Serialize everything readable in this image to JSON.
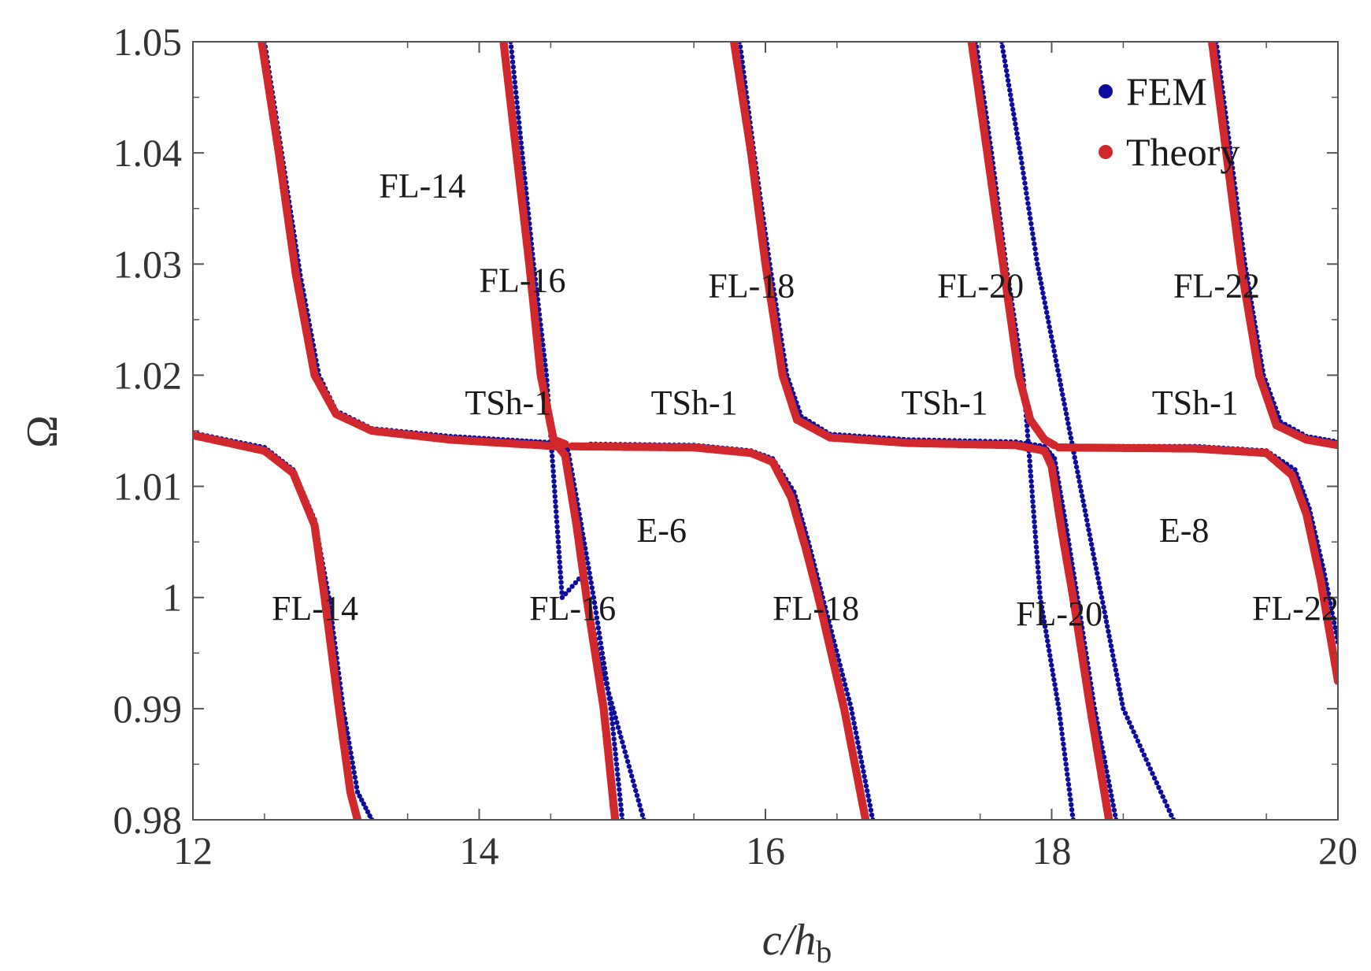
{
  "chart_data": {
    "type": "scatter",
    "xlabel_parts": {
      "main": "c/h",
      "sub": "b"
    },
    "ylabel": "Ω",
    "xlim": [
      12,
      20
    ],
    "ylim": [
      0.98,
      1.05
    ],
    "x_ticks": [
      "12",
      "14",
      "16",
      "18",
      "20"
    ],
    "y_ticks": [
      "0.98",
      "0.99",
      "1",
      "1.01",
      "1.02",
      "1.03",
      "1.04",
      "1.05"
    ],
    "grid": false,
    "legend_position": "top-right",
    "colors": {
      "FEM": "#0b0b9e",
      "Theory": "#d0282c",
      "axis": "#555555"
    },
    "series": [
      {
        "name": "FEM",
        "marker": "dots",
        "segments": [
          [
            [
              12.0,
              1.0148
            ],
            [
              12.5,
              1.0135
            ],
            [
              12.7,
              1.0115
            ],
            [
              12.85,
              1.007
            ],
            [
              12.95,
              1.0
            ],
            [
              13.05,
              0.99
            ],
            [
              13.15,
              0.9825
            ],
            [
              13.25,
              0.98
            ]
          ],
          [
            [
              12.5,
              1.05
            ],
            [
              12.62,
              1.04
            ],
            [
              12.75,
              1.029
            ],
            [
              12.88,
              1.02
            ],
            [
              13.0,
              1.0168
            ],
            [
              13.25,
              1.0152
            ],
            [
              13.8,
              1.0145
            ],
            [
              14.3,
              1.0141
            ],
            [
              14.55,
              1.0139
            ],
            [
              14.62,
              1.0133
            ],
            [
              14.7,
              1.0075
            ],
            [
              14.8,
              1.0
            ],
            [
              14.92,
              0.99
            ],
            [
              15.0,
              0.98
            ]
          ],
          [
            [
              14.22,
              1.05
            ],
            [
              14.3,
              1.04
            ],
            [
              14.38,
              1.03
            ],
            [
              14.47,
              1.02
            ],
            [
              14.58,
              1.0
            ],
            [
              14.72,
              1.002
            ],
            [
              14.85,
              0.994
            ],
            [
              15.0,
              0.987
            ],
            [
              15.15,
              0.98
            ]
          ],
          [
            [
              15.82,
              1.05
            ],
            [
              15.92,
              1.04
            ],
            [
              16.03,
              1.03
            ],
            [
              16.15,
              1.02
            ],
            [
              16.25,
              1.0163
            ],
            [
              16.45,
              1.0147
            ],
            [
              17.0,
              1.0142
            ],
            [
              17.75,
              1.014
            ],
            [
              17.95,
              1.0136
            ],
            [
              18.02,
              1.0125
            ],
            [
              18.1,
              1.0065
            ],
            [
              18.18,
              1.0
            ],
            [
              18.3,
              0.99
            ],
            [
              18.45,
              0.98
            ]
          ],
          [
            [
              14.78,
              1.0138
            ],
            [
              15.5,
              1.0137
            ],
            [
              15.9,
              1.0132
            ],
            [
              16.05,
              1.0125
            ],
            [
              16.2,
              1.0095
            ],
            [
              16.3,
              1.005
            ],
            [
              16.4,
              1.0
            ],
            [
              16.6,
              0.99
            ],
            [
              16.75,
              0.98
            ]
          ],
          [
            [
              17.47,
              1.05
            ],
            [
              17.58,
              1.04
            ],
            [
              17.68,
              1.03
            ],
            [
              17.8,
              1.02
            ],
            [
              17.92,
              1.0
            ],
            [
              18.05,
              0.99
            ],
            [
              18.15,
              0.98
            ]
          ],
          [
            [
              17.65,
              1.05
            ],
            [
              17.78,
              1.04
            ],
            [
              17.9,
              1.03
            ],
            [
              18.05,
              1.02
            ],
            [
              18.2,
              1.01
            ],
            [
              18.35,
              1.0
            ],
            [
              18.5,
              0.99
            ],
            [
              18.85,
              0.98
            ]
          ],
          [
            [
              19.15,
              1.05
            ],
            [
              19.25,
              1.04
            ],
            [
              19.35,
              1.03
            ],
            [
              19.48,
              1.02
            ],
            [
              19.6,
              1.0158
            ],
            [
              19.78,
              1.0145
            ],
            [
              20.0,
              1.014
            ]
          ],
          [
            [
              18.22,
              1.0136
            ],
            [
              19.0,
              1.0136
            ],
            [
              19.5,
              1.0132
            ],
            [
              19.7,
              1.0115
            ],
            [
              19.8,
              1.008
            ],
            [
              19.9,
              1.0025
            ],
            [
              20.0,
              0.996
            ]
          ]
        ]
      },
      {
        "name": "Theory",
        "marker": "dots",
        "segments": [
          [
            [
              12.0,
              1.0146
            ],
            [
              12.5,
              1.0132
            ],
            [
              12.7,
              1.0112
            ],
            [
              12.85,
              1.0065
            ],
            [
              12.92,
              1.0
            ],
            [
              13.02,
              0.99
            ],
            [
              13.1,
              0.9825
            ],
            [
              13.15,
              0.98
            ]
          ],
          [
            [
              12.48,
              1.05
            ],
            [
              12.6,
              1.04
            ],
            [
              12.72,
              1.029
            ],
            [
              12.85,
              1.02
            ],
            [
              13.0,
              1.0165
            ],
            [
              13.25,
              1.015
            ],
            [
              13.8,
              1.0142
            ],
            [
              14.3,
              1.0138
            ],
            [
              14.55,
              1.0136
            ],
            [
              14.6,
              1.0128
            ],
            [
              14.68,
              1.0065
            ],
            [
              14.75,
              1.0
            ],
            [
              14.87,
              0.99
            ],
            [
              14.95,
              0.98
            ]
          ],
          [
            [
              14.17,
              1.05
            ],
            [
              14.26,
              1.04
            ],
            [
              14.35,
              1.03
            ],
            [
              14.43,
              1.02
            ],
            [
              14.52,
              1.0142
            ],
            [
              14.6,
              1.0138
            ]
          ],
          [
            [
              15.78,
              1.05
            ],
            [
              15.9,
              1.04
            ],
            [
              16.0,
              1.03
            ],
            [
              16.12,
              1.02
            ],
            [
              16.22,
              1.016
            ],
            [
              16.45,
              1.0144
            ],
            [
              17.0,
              1.0139
            ],
            [
              17.75,
              1.0137
            ],
            [
              17.95,
              1.0132
            ],
            [
              18.0,
              1.0118
            ],
            [
              18.07,
              1.006
            ],
            [
              18.15,
              1.0
            ],
            [
              18.27,
              0.99
            ],
            [
              18.4,
              0.98
            ]
          ],
          [
            [
              14.65,
              1.0136
            ],
            [
              15.5,
              1.0135
            ],
            [
              15.9,
              1.013
            ],
            [
              16.05,
              1.0122
            ],
            [
              16.18,
              1.009
            ],
            [
              16.28,
              1.0045
            ],
            [
              16.37,
              1.0
            ],
            [
              16.55,
              0.99
            ],
            [
              16.7,
              0.98
            ]
          ],
          [
            [
              17.44,
              1.05
            ],
            [
              17.55,
              1.04
            ],
            [
              17.66,
              1.03
            ],
            [
              17.77,
              1.02
            ],
            [
              17.85,
              1.016
            ],
            [
              17.95,
              1.0142
            ],
            [
              18.02,
              1.0137
            ]
          ],
          [
            [
              19.12,
              1.05
            ],
            [
              19.22,
              1.04
            ],
            [
              19.32,
              1.03
            ],
            [
              19.45,
              1.02
            ],
            [
              19.57,
              1.0155
            ],
            [
              19.78,
              1.0142
            ],
            [
              20.0,
              1.0137
            ]
          ],
          [
            [
              18.05,
              1.0135
            ],
            [
              19.0,
              1.0134
            ],
            [
              19.5,
              1.013
            ],
            [
              19.68,
              1.011
            ],
            [
              19.78,
              1.0075
            ],
            [
              19.88,
              1.0015
            ],
            [
              20.0,
              0.9925
            ]
          ]
        ]
      }
    ],
    "annotations": [
      {
        "text": "FL-14",
        "x": 13.3,
        "y": 1.036
      },
      {
        "text": "FL-16",
        "x": 14.0,
        "y": 1.0275
      },
      {
        "text": "FL-18",
        "x": 15.6,
        "y": 1.027
      },
      {
        "text": "FL-20",
        "x": 17.2,
        "y": 1.027
      },
      {
        "text": "FL-22",
        "x": 18.85,
        "y": 1.027
      },
      {
        "text": "TSh-1",
        "x": 13.9,
        "y": 1.0165
      },
      {
        "text": "TSh-1",
        "x": 15.2,
        "y": 1.0165
      },
      {
        "text": "TSh-1",
        "x": 16.95,
        "y": 1.0165
      },
      {
        "text": "TSh-1",
        "x": 18.7,
        "y": 1.0165
      },
      {
        "text": "E-6",
        "x": 15.1,
        "y": 1.005
      },
      {
        "text": "E-8",
        "x": 18.75,
        "y": 1.005
      },
      {
        "text": "FL-14",
        "x": 12.55,
        "y": 0.998
      },
      {
        "text": "FL-16",
        "x": 14.35,
        "y": 0.998
      },
      {
        "text": "FL-18",
        "x": 16.05,
        "y": 0.998
      },
      {
        "text": "FL-20",
        "x": 17.75,
        "y": 0.9975
      },
      {
        "text": "FL-22",
        "x": 19.4,
        "y": 0.998
      }
    ]
  }
}
